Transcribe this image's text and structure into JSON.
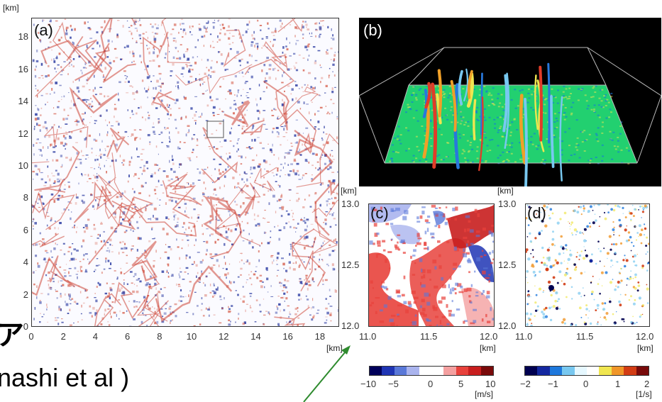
{
  "chart_data": [
    {
      "type": "heatmap",
      "panel": "(a)",
      "unit_label": "[km]",
      "x_ticks": [
        0,
        2,
        4,
        6,
        8,
        10,
        12,
        14,
        16,
        18
      ],
      "y_ticks": [
        0,
        2,
        4,
        6,
        8,
        10,
        12,
        14,
        16,
        18
      ],
      "xlim": [
        0,
        19.2
      ],
      "ylim": [
        0,
        19.2
      ]
    },
    {
      "type": "other",
      "panel": "(b)"
    },
    {
      "type": "heatmap",
      "panel": "(c)",
      "unit_label": "[km]",
      "x_ticks": [
        "11.0",
        "11.5",
        "12.0"
      ],
      "y_ticks": [
        "12.0",
        "12.5",
        "13.0"
      ],
      "xlim": [
        11.0,
        12.0
      ],
      "ylim": [
        12.0,
        13.0
      ],
      "colorbar": {
        "ticks": [
          "−10",
          "−5",
          "0",
          "5",
          "10"
        ],
        "unit": "[m/s]",
        "colors": [
          "#00005a",
          "#1f35b4",
          "#5a78d8",
          "#aab4ee",
          "#ffffff",
          "#ffffff",
          "#f4a0a0",
          "#e8423c",
          "#c81e1e",
          "#7a0a0a"
        ]
      }
    },
    {
      "type": "heatmap",
      "panel": "(d)",
      "unit_label": "[km]",
      "x_ticks": [
        "11.0",
        "11.5",
        "12.0"
      ],
      "y_ticks": [
        "12.0",
        "12.5",
        "13.0"
      ],
      "xlim": [
        11.0,
        12.0
      ],
      "ylim": [
        12.0,
        13.0
      ],
      "colorbar": {
        "ticks": [
          "−2",
          "−1",
          "0",
          "1",
          "2"
        ],
        "unit": "[1/s]",
        "colors": [
          "#000050",
          "#1428a0",
          "#1e78dc",
          "#78c8f0",
          "#e6f8ff",
          "#ffffff",
          "#f0e650",
          "#f09628",
          "#d23c14",
          "#780a0a"
        ]
      }
    }
  ],
  "fragments": {
    "left_char": "ア",
    "cut_text": "nashi et al )"
  },
  "colors": {
    "red": "#d2503c",
    "blue": "#2838a0",
    "arrow": "#2e8b2e"
  }
}
